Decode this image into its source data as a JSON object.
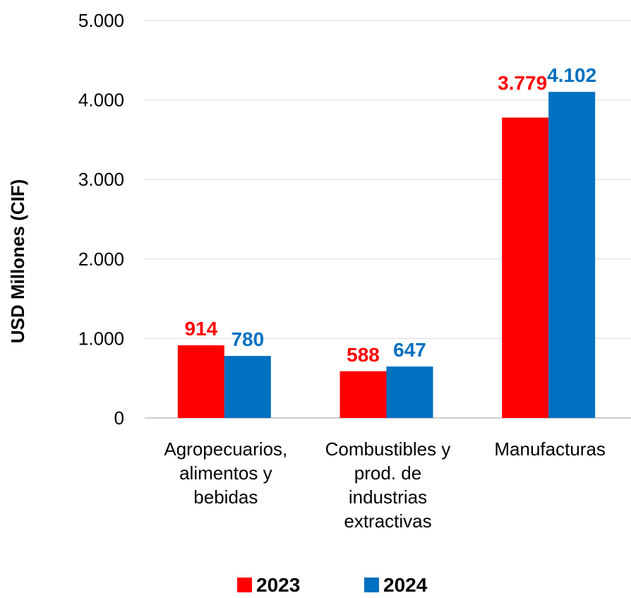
{
  "chart_data": {
    "type": "bar",
    "ylabel": "USD Millones (CIF)",
    "ylim": [
      0,
      5000
    ],
    "yticks": [
      0,
      1000,
      2000,
      3000,
      4000,
      5000
    ],
    "ytick_labels": [
      "0",
      "1.000",
      "2.000",
      "3.000",
      "4.000",
      "5.000"
    ],
    "grid": true,
    "legend": "bottom",
    "categories": [
      [
        "Agropecuarios,",
        "alimentos y",
        "bebidas"
      ],
      [
        "Combustibles y",
        "prod. de",
        "industrias",
        "extractivas"
      ],
      [
        "Manufacturas"
      ]
    ],
    "series": [
      {
        "name": "2023",
        "color": "#ff0000",
        "values": [
          914,
          588,
          3779
        ],
        "labels": [
          "914",
          "588",
          "3.779"
        ]
      },
      {
        "name": "2024",
        "color": "#0070c0",
        "values": [
          780,
          647,
          4102
        ],
        "labels": [
          "780",
          "647",
          "4.102"
        ]
      }
    ]
  }
}
